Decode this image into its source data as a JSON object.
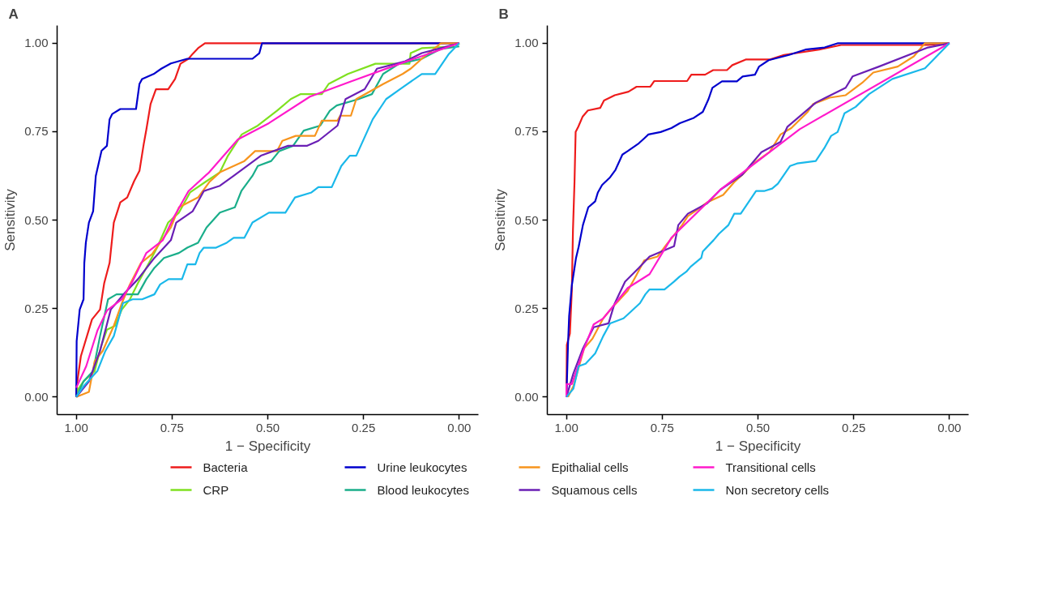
{
  "chart_data": [
    {
      "type": "line",
      "title": "A",
      "xlabel": "1 − Specificity",
      "ylabel": "Sensitivity",
      "xlim": [
        1.05,
        -0.05
      ],
      "ylim": [
        -0.05,
        1.05
      ],
      "xticks": [
        {
          "value": 1,
          "label": "1.00"
        },
        {
          "value": 0.75,
          "label": "0.75"
        },
        {
          "value": 0.5,
          "label": "0.50"
        },
        {
          "value": 0.25,
          "label": "0.25"
        },
        {
          "value": 0,
          "label": "0.00"
        }
      ],
      "yticks": [
        {
          "value": 0,
          "label": "0.00"
        },
        {
          "value": 0.25,
          "label": "0.25"
        },
        {
          "value": 0.5,
          "label": "0.50"
        },
        {
          "value": 0.75,
          "label": "0.75"
        },
        {
          "value": 1,
          "label": "1.00"
        }
      ],
      "grid": false,
      "legend": "bottom",
      "line_style": "solid",
      "series": [
        {
          "name": "Bacteria",
          "color": "#ee1c1c",
          "x": [
            1,
            0.999,
            0.988,
            0.959,
            0.938,
            0.927,
            0.913,
            0.902,
            0.885,
            0.867,
            0.849,
            0.835,
            0.824,
            0.817,
            0.806,
            0.792,
            0.76,
            0.742,
            0.728,
            0.707,
            0.696,
            0.682,
            0.664,
            0
          ],
          "values": [
            0,
            0.03,
            0.115,
            0.219,
            0.247,
            0.322,
            0.379,
            0.493,
            0.55,
            0.564,
            0.61,
            0.639,
            0.714,
            0.756,
            0.828,
            0.87,
            0.87,
            0.899,
            0.942,
            0.956,
            0.97,
            0.986,
            1,
            1
          ]
        },
        {
          "name": "CRP",
          "color": "#7fe020",
          "x": [
            1,
            0.981,
            0.952,
            0.935,
            0.92,
            0.899,
            0.881,
            0.86,
            0.839,
            0.81,
            0.789,
            0.76,
            0.732,
            0.703,
            0.66,
            0.625,
            0.604,
            0.568,
            0.526,
            0.476,
            0.44,
            0.415,
            0.359,
            0.341,
            0.291,
            0.219,
            0.13,
            0.127,
            0.098,
            0.009,
            0
          ],
          "values": [
            0.014,
            0.044,
            0.073,
            0.144,
            0.19,
            0.201,
            0.247,
            0.276,
            0.322,
            0.379,
            0.422,
            0.493,
            0.521,
            0.578,
            0.61,
            0.635,
            0.682,
            0.742,
            0.767,
            0.809,
            0.842,
            0.856,
            0.856,
            0.885,
            0.913,
            0.942,
            0.942,
            0.972,
            0.986,
            0.991,
            1
          ]
        },
        {
          "name": "Urine leukocytes",
          "color": "#0000cd",
          "x": [
            1,
            0.999,
            0.991,
            0.981,
            0.979,
            0.975,
            0.967,
            0.956,
            0.949,
            0.934,
            0.92,
            0.913,
            0.906,
            0.885,
            0.844,
            0.835,
            0.828,
            0.798,
            0.778,
            0.753,
            0.71,
            0.54,
            0.522,
            0.515,
            0
          ],
          "values": [
            0,
            0.158,
            0.247,
            0.276,
            0.379,
            0.436,
            0.493,
            0.525,
            0.625,
            0.696,
            0.71,
            0.785,
            0.8,
            0.814,
            0.814,
            0.885,
            0.899,
            0.913,
            0.928,
            0.943,
            0.956,
            0.956,
            0.972,
            1,
            1
          ]
        },
        {
          "name": "Blood leukocytes",
          "color": "#1aae8a",
          "x": [
            1,
            0.981,
            0.956,
            0.938,
            0.917,
            0.895,
            0.839,
            0.817,
            0.796,
            0.771,
            0.732,
            0.71,
            0.682,
            0.66,
            0.625,
            0.586,
            0.569,
            0.54,
            0.526,
            0.491,
            0.47,
            0.434,
            0.406,
            0.363,
            0.338,
            0.32,
            0.263,
            0.228,
            0.199,
            0.157,
            0.098,
            0.048,
            0
          ],
          "values": [
            0,
            0.044,
            0.073,
            0.172,
            0.276,
            0.29,
            0.29,
            0.333,
            0.365,
            0.393,
            0.407,
            0.422,
            0.436,
            0.479,
            0.521,
            0.536,
            0.582,
            0.625,
            0.653,
            0.667,
            0.695,
            0.71,
            0.753,
            0.767,
            0.809,
            0.824,
            0.842,
            0.856,
            0.913,
            0.942,
            0.956,
            0.984,
            0.991
          ]
        },
        {
          "name": "Epithalial cells",
          "color": "#f7941d",
          "x": [
            1,
            0.967,
            0.952,
            0.931,
            0.902,
            0.881,
            0.86,
            0.831,
            0.802,
            0.753,
            0.732,
            0.682,
            0.653,
            0.625,
            0.561,
            0.533,
            0.476,
            0.462,
            0.427,
            0.377,
            0.359,
            0.318,
            0.311,
            0.283,
            0.269,
            0.198,
            0.148,
            0.127,
            0.098,
            0.048,
            0
          ],
          "values": [
            0,
            0.014,
            0.101,
            0.13,
            0.201,
            0.265,
            0.318,
            0.379,
            0.404,
            0.479,
            0.536,
            0.564,
            0.607,
            0.635,
            0.667,
            0.695,
            0.695,
            0.724,
            0.738,
            0.738,
            0.781,
            0.781,
            0.795,
            0.795,
            0.842,
            0.885,
            0.913,
            0.928,
            0.956,
            1,
            1
          ]
        },
        {
          "name": "Squamous cells",
          "color": "#6a1fb5",
          "x": [
            1,
            0.967,
            0.938,
            0.91,
            0.874,
            0.839,
            0.796,
            0.753,
            0.739,
            0.696,
            0.667,
            0.625,
            0.589,
            0.518,
            0.447,
            0.397,
            0.368,
            0.318,
            0.297,
            0.247,
            0.215,
            0.141,
            0.098,
            0
          ],
          "values": [
            0,
            0.044,
            0.13,
            0.247,
            0.293,
            0.333,
            0.393,
            0.443,
            0.493,
            0.525,
            0.582,
            0.597,
            0.625,
            0.682,
            0.71,
            0.71,
            0.724,
            0.767,
            0.842,
            0.87,
            0.928,
            0.949,
            0.972,
            1
          ]
        },
        {
          "name": "Transitional cells",
          "color": "#ff1acb",
          "x": [
            1,
            0.974,
            0.945,
            0.92,
            0.881,
            0.852,
            0.817,
            0.774,
            0.746,
            0.707,
            0.653,
            0.578,
            0.497,
            0.39,
            0.283,
            0.155,
            0
          ],
          "values": [
            0.026,
            0.087,
            0.187,
            0.244,
            0.276,
            0.329,
            0.407,
            0.443,
            0.507,
            0.582,
            0.635,
            0.728,
            0.774,
            0.849,
            0.892,
            0.942,
            1
          ]
        },
        {
          "name": "Non secretory cells",
          "color": "#1ab8ea",
          "x": [
            1,
            0.981,
            0.945,
            0.924,
            0.902,
            0.878,
            0.853,
            0.828,
            0.796,
            0.781,
            0.759,
            0.724,
            0.71,
            0.689,
            0.678,
            0.667,
            0.635,
            0.607,
            0.589,
            0.561,
            0.54,
            0.497,
            0.454,
            0.429,
            0.386,
            0.368,
            0.333,
            0.308,
            0.286,
            0.269,
            0.226,
            0.191,
            0.155,
            0.098,
            0.063,
            0.027,
            0
          ],
          "values": [
            0,
            0.03,
            0.073,
            0.13,
            0.172,
            0.265,
            0.276,
            0.276,
            0.29,
            0.318,
            0.333,
            0.333,
            0.375,
            0.375,
            0.407,
            0.422,
            0.422,
            0.436,
            0.45,
            0.45,
            0.493,
            0.521,
            0.521,
            0.564,
            0.578,
            0.593,
            0.593,
            0.653,
            0.682,
            0.682,
            0.785,
            0.842,
            0.87,
            0.913,
            0.913,
            0.97,
            1
          ]
        }
      ]
    },
    {
      "type": "line",
      "title": "B",
      "xlabel": "1 − Specificity",
      "ylabel": "Sensitivity",
      "xlim": [
        1.05,
        -0.05
      ],
      "ylim": [
        -0.05,
        1.05
      ],
      "xticks": [
        {
          "value": 1,
          "label": "1.00"
        },
        {
          "value": 0.75,
          "label": "0.75"
        },
        {
          "value": 0.5,
          "label": "0.50"
        },
        {
          "value": 0.25,
          "label": "0.25"
        },
        {
          "value": 0,
          "label": "0.00"
        }
      ],
      "yticks": [
        {
          "value": 0,
          "label": "0.00"
        },
        {
          "value": 0.25,
          "label": "0.25"
        },
        {
          "value": 0.5,
          "label": "0.50"
        },
        {
          "value": 0.75,
          "label": "0.75"
        },
        {
          "value": 1,
          "label": "1.00"
        }
      ],
      "grid": false,
      "line_style": "solid",
      "series": [
        {
          "color": "#ee1c1c",
          "x": [
            1,
            0.999,
            0.991,
            0.986,
            0.983,
            0.979,
            0.976,
            0.969,
            0.958,
            0.944,
            0.912,
            0.902,
            0.874,
            0.838,
            0.817,
            0.781,
            0.771,
            0.685,
            0.674,
            0.638,
            0.617,
            0.581,
            0.567,
            0.532,
            0.468,
            0.432,
            0.34,
            0.283,
            0.055,
            0
          ],
          "values": [
            0,
            0.147,
            0.179,
            0.3,
            0.472,
            0.607,
            0.749,
            0.764,
            0.792,
            0.81,
            0.817,
            0.838,
            0.853,
            0.863,
            0.877,
            0.877,
            0.893,
            0.893,
            0.911,
            0.911,
            0.924,
            0.924,
            0.938,
            0.954,
            0.954,
            0.967,
            0.982,
            0.995,
            0.995,
            1
          ]
        },
        {
          "color": "#0000cd",
          "x": [
            1,
            0.996,
            0.993,
            0.986,
            0.975,
            0.968,
            0.957,
            0.943,
            0.925,
            0.918,
            0.907,
            0.886,
            0.872,
            0.854,
            0.84,
            0.811,
            0.797,
            0.786,
            0.754,
            0.726,
            0.704,
            0.669,
            0.644,
            0.629,
            0.619,
            0.594,
            0.555,
            0.54,
            0.508,
            0.497,
            0.472,
            0.419,
            0.376,
            0.326,
            0.291,
            0
          ],
          "values": [
            0,
            0.147,
            0.229,
            0.315,
            0.393,
            0.425,
            0.486,
            0.536,
            0.553,
            0.578,
            0.599,
            0.621,
            0.642,
            0.685,
            0.695,
            0.717,
            0.731,
            0.742,
            0.749,
            0.76,
            0.774,
            0.788,
            0.806,
            0.842,
            0.874,
            0.892,
            0.892,
            0.906,
            0.911,
            0.934,
            0.952,
            0.967,
            0.982,
            0.988,
            1,
            1
          ]
        },
        {
          "color": "#f7941d",
          "x": [
            0.996,
            0.982,
            0.954,
            0.932,
            0.904,
            0.876,
            0.84,
            0.818,
            0.797,
            0.762,
            0.74,
            0.698,
            0.683,
            0.655,
            0.634,
            0.591,
            0.562,
            0.541,
            0.512,
            0.47,
            0.441,
            0.413,
            0.37,
            0.356,
            0.313,
            0.271,
            0.228,
            0.199,
            0.135,
            0.093,
            0.064,
            0
          ],
          "values": [
            0,
            0.03,
            0.137,
            0.165,
            0.222,
            0.258,
            0.3,
            0.343,
            0.386,
            0.397,
            0.429,
            0.486,
            0.511,
            0.532,
            0.549,
            0.571,
            0.607,
            0.628,
            0.66,
            0.692,
            0.742,
            0.76,
            0.806,
            0.828,
            0.846,
            0.853,
            0.888,
            0.917,
            0.934,
            0.963,
            1,
            1
          ]
        },
        {
          "color": "#6a1fb5",
          "x": [
            1,
            0.982,
            0.957,
            0.929,
            0.89,
            0.875,
            0.847,
            0.811,
            0.783,
            0.719,
            0.708,
            0.683,
            0.633,
            0.598,
            0.541,
            0.491,
            0.441,
            0.423,
            0.349,
            0.271,
            0.253,
            0.184,
            0.056,
            0
          ],
          "values": [
            0,
            0.066,
            0.137,
            0.197,
            0.208,
            0.262,
            0.326,
            0.365,
            0.397,
            0.426,
            0.486,
            0.518,
            0.547,
            0.586,
            0.628,
            0.692,
            0.721,
            0.764,
            0.832,
            0.874,
            0.906,
            0.934,
            0.988,
            1
          ]
        },
        {
          "color": "#ff1acb",
          "x": [
            1,
            1,
            0.986,
            0.954,
            0.929,
            0.904,
            0.84,
            0.783,
            0.726,
            0.598,
            0.391,
            0
          ],
          "values": [
            0,
            0.036,
            0.036,
            0.137,
            0.205,
            0.222,
            0.308,
            0.347,
            0.45,
            0.586,
            0.757,
            1
          ]
        },
        {
          "color": "#1ab8ea",
          "x": [
            1,
            0.982,
            0.968,
            0.95,
            0.925,
            0.904,
            0.886,
            0.851,
            0.833,
            0.808,
            0.794,
            0.783,
            0.744,
            0.719,
            0.705,
            0.687,
            0.676,
            0.648,
            0.644,
            0.616,
            0.602,
            0.577,
            0.562,
            0.545,
            0.505,
            0.484,
            0.463,
            0.448,
            0.416,
            0.398,
            0.349,
            0.327,
            0.309,
            0.292,
            0.274,
            0.245,
            0.21,
            0.149,
            0.064,
            0
          ],
          "values": [
            0,
            0.023,
            0.087,
            0.094,
            0.123,
            0.172,
            0.208,
            0.222,
            0.24,
            0.265,
            0.29,
            0.304,
            0.304,
            0.326,
            0.34,
            0.354,
            0.368,
            0.393,
            0.411,
            0.443,
            0.461,
            0.486,
            0.518,
            0.518,
            0.582,
            0.582,
            0.589,
            0.603,
            0.653,
            0.66,
            0.667,
            0.703,
            0.738,
            0.749,
            0.802,
            0.82,
            0.856,
            0.899,
            0.929,
            1
          ]
        }
      ]
    }
  ]
}
